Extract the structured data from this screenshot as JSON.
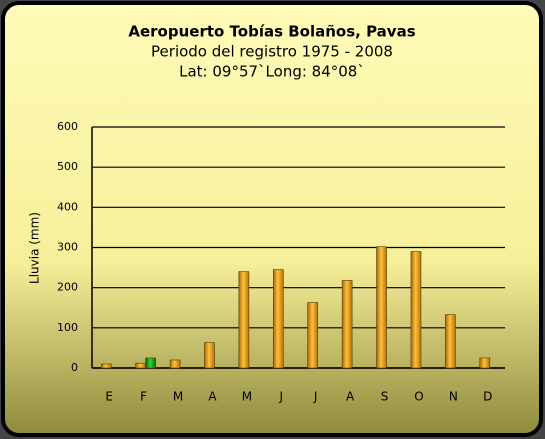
{
  "chart_data": {
    "type": "bar",
    "title": "Aeropuerto Tobías Bolaños, Pavas",
    "subtitle": [
      "Periodo del registro 1975 - 2008",
      "Lat: 09°57`Long: 84°08`"
    ],
    "y_label": "Lluvia (mm)",
    "categories": [
      "E",
      "F",
      "M",
      "A",
      "M",
      "J",
      "J",
      "A",
      "S",
      "O",
      "N",
      "D"
    ],
    "series": [
      {
        "color": "#f5a100",
        "values": [
          10,
          12,
          20,
          63,
          240,
          245,
          163,
          218,
          302,
          290,
          133,
          25
        ]
      },
      {
        "color": "#1a9e1a",
        "values": [
          null,
          25,
          null,
          null,
          null,
          null,
          null,
          null,
          null,
          null,
          null,
          null
        ]
      }
    ],
    "ylim": [
      0,
      600
    ],
    "yticks": [
      0,
      100,
      200,
      300,
      400,
      500,
      600
    ],
    "grid": true
  }
}
